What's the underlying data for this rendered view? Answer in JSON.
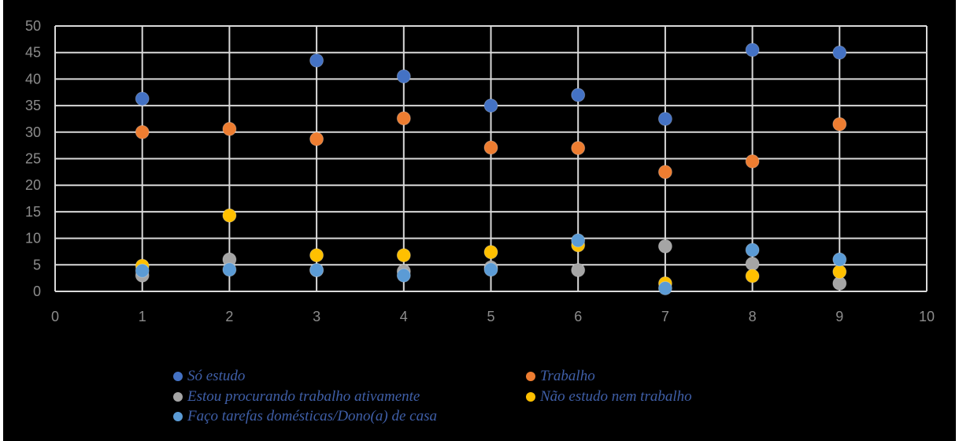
{
  "chart_data": {
    "type": "scatter",
    "title": "",
    "xlabel": "",
    "ylabel": "",
    "xlim": [
      0,
      10
    ],
    "ylim": [
      0,
      50
    ],
    "xticks": [
      "0",
      "1",
      "2",
      "3",
      "4",
      "5",
      "6",
      "7",
      "8",
      "9",
      "10"
    ],
    "yticks": [
      "0",
      "5",
      "10",
      "15",
      "20",
      "25",
      "30",
      "35",
      "40",
      "45",
      "50"
    ],
    "grid": true,
    "legend_position": "bottom",
    "series": [
      {
        "name": "Só estudo",
        "color": "#4472c4",
        "x": [
          1,
          2,
          3,
          4,
          5,
          6,
          7,
          8,
          9
        ],
        "y": [
          36.3,
          null,
          43.5,
          40.5,
          35.0,
          37.0,
          32.5,
          45.5,
          45.0
        ]
      },
      {
        "name": "Trabalho",
        "color": "#ed7d31",
        "x": [
          1,
          2,
          3,
          4,
          5,
          6,
          7,
          8,
          9
        ],
        "y": [
          30.0,
          30.6,
          28.7,
          32.6,
          27.1,
          27.0,
          22.5,
          24.5,
          31.5
        ]
      },
      {
        "name": "Estou procurando trabalho ativamente",
        "color": "#a5a5a5",
        "x": [
          1,
          2,
          3,
          4,
          5,
          6,
          7,
          8,
          9
        ],
        "y": [
          3.0,
          6.0,
          4.0,
          3.8,
          4.5,
          4.0,
          8.5,
          5.2,
          1.5
        ]
      },
      {
        "name": "Não estudo nem trabalho",
        "color": "#ffc000",
        "x": [
          1,
          2,
          3,
          4,
          5,
          6,
          7,
          8,
          9
        ],
        "y": [
          4.8,
          14.3,
          6.8,
          6.8,
          7.4,
          8.7,
          1.5,
          2.9,
          3.7
        ]
      },
      {
        "name": "Faço tarefas domésticas/Dono(a) de casa",
        "color": "#5b9bd5",
        "x": [
          1,
          2,
          3,
          4,
          5,
          6,
          7,
          8,
          9
        ],
        "y": [
          3.9,
          4.1,
          4.0,
          3.0,
          4.1,
          9.6,
          0.6,
          7.8,
          6.0
        ]
      }
    ]
  }
}
